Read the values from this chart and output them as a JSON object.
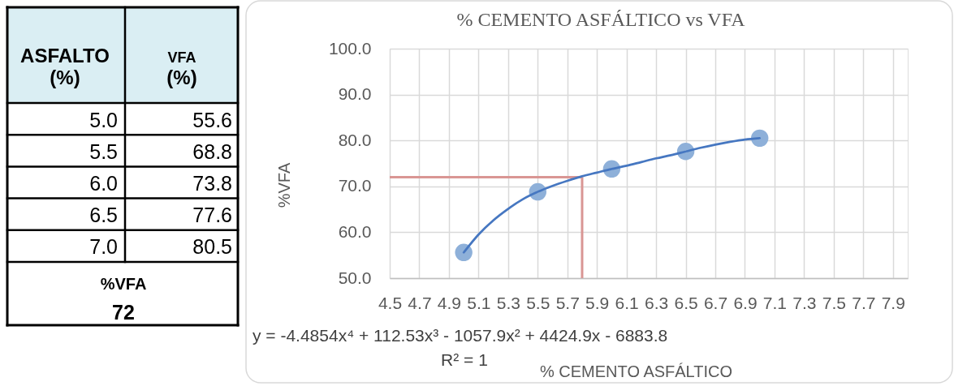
{
  "chart_data": {
    "type": "scatter",
    "title": "% CEMENTO ASFÁLTICO vs VFA",
    "xlabel": "% CEMENTO ASFÁLTICO",
    "ylabel": "%VFA",
    "xlim": [
      4.5,
      8.0
    ],
    "xticks": [
      4.5,
      4.7,
      4.9,
      5.1,
      5.3,
      5.5,
      5.7,
      5.9,
      6.1,
      6.3,
      6.5,
      6.7,
      6.9,
      7.1,
      7.3,
      7.5,
      7.7,
      7.9
    ],
    "ylim": [
      50,
      100
    ],
    "yticks": [
      {
        "value": 50,
        "label": "50.0"
      },
      {
        "value": 60,
        "label": "60.0"
      },
      {
        "value": 70,
        "label": "70.0"
      },
      {
        "value": 80,
        "label": "80.0"
      },
      {
        "value": 90,
        "label": "90.0"
      },
      {
        "value": 100,
        "label": "100.0"
      }
    ],
    "grid": true,
    "series": [
      {
        "type": "scatter",
        "color": "#8eb0d9",
        "marker": "circle",
        "x": [
          5.0,
          5.5,
          6.0,
          6.5,
          7.0
        ],
        "values": [
          55.6,
          68.8,
          73.8,
          77.6,
          80.5
        ]
      },
      {
        "type": "line",
        "color": "#4677c1",
        "x": [
          5.0,
          5.1,
          5.2,
          5.3,
          5.4,
          5.5,
          5.6,
          5.7,
          5.8,
          5.9,
          6.0,
          6.1,
          6.2,
          6.3,
          6.4,
          6.5,
          6.6,
          6.7,
          6.8,
          6.9,
          7.0
        ],
        "values": [
          55.6,
          59.5,
          62.6,
          65.1,
          67.2,
          68.8,
          70.1,
          71.2,
          72.2,
          73.0,
          73.8,
          74.5,
          75.3,
          76.1,
          76.8,
          77.6,
          78.4,
          79.1,
          79.7,
          80.2,
          80.5
        ]
      }
    ],
    "ref_lines": [
      {
        "axis": "y",
        "value": 72,
        "color": "#d99694"
      },
      {
        "axis": "x",
        "value": 5.8,
        "color": "#d99694"
      }
    ],
    "annotations": [
      "ASFALTO (%)",
      "VFA (%)",
      "5.0",
      "55.6",
      "5.5",
      "68.8",
      "6.0",
      "73.8",
      "6.5",
      "77.6",
      "7.0",
      "80.5",
      "%VFA 72",
      "y = -4.4854x⁴ + 112.53x³ - 1057.9x² + 4424.9x - 6883.8",
      "R² = 1"
    ]
  }
}
